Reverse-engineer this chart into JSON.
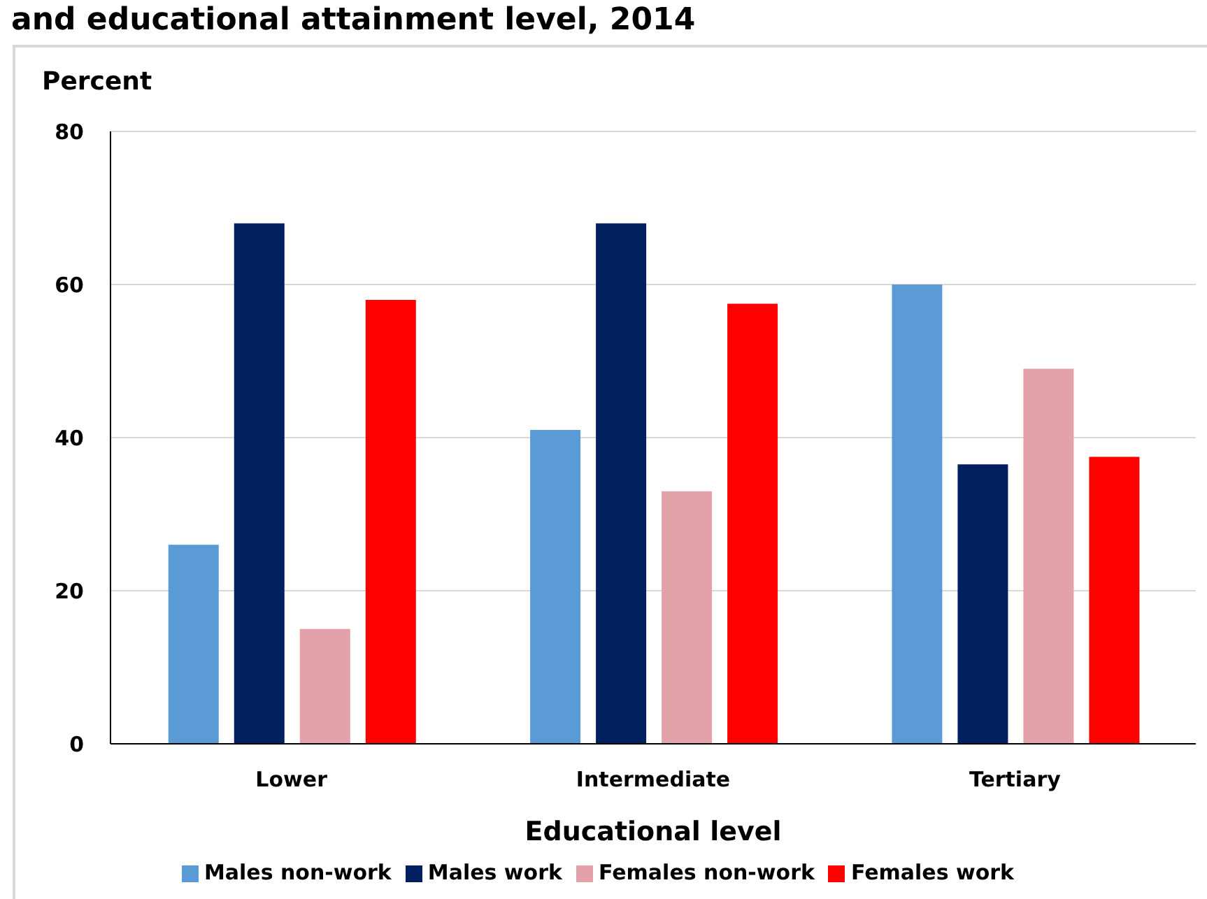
{
  "chart_data": {
    "type": "bar",
    "title": "and educational attainment level, 2014",
    "ylabel": "Percent",
    "xlabel": "Educational level",
    "categories": [
      "Lower",
      "Intermediate",
      "Tertiary"
    ],
    "series": [
      {
        "name": "Males non-work",
        "color": "#5b9bd5",
        "values": [
          26,
          41,
          60
        ]
      },
      {
        "name": "Males work",
        "color": "#002060",
        "values": [
          68,
          68,
          36.5
        ]
      },
      {
        "name": "Females non-work",
        "color": "#e3a1a9",
        "values": [
          15,
          33,
          49
        ]
      },
      {
        "name": "Females work",
        "color": "#ff0000",
        "values": [
          58,
          57.5,
          37.5
        ]
      }
    ],
    "ylim": [
      0,
      80
    ],
    "yticks": [
      0,
      20,
      40,
      60,
      80
    ],
    "grid": "y",
    "legend": "bottom"
  }
}
